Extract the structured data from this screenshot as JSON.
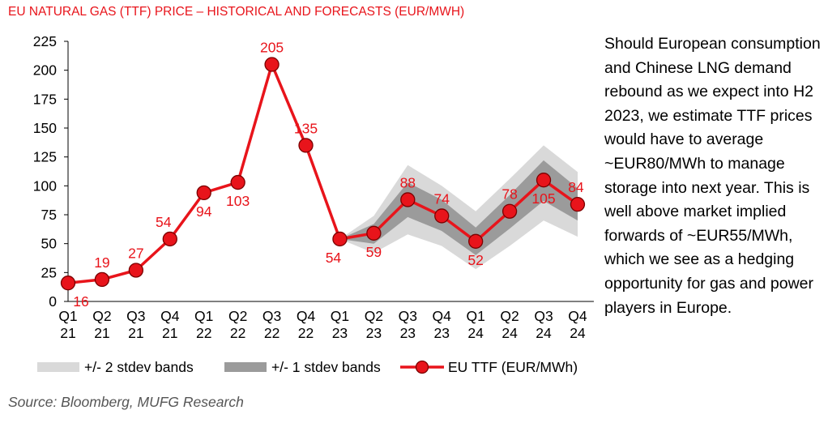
{
  "title": "EU NATURAL GAS (TTF) PRICE – HISTORICAL AND FORECASTS (EUR/MWH)",
  "side_text": "Should European consumption and Chinese LNG demand rebound as we expect into H2 2023, we estimate TTF prices would have to average ~EUR80/MWh to manage storage into next year. This is well above market implied forwards of ~EUR55/MWh, which we see as a hedging opportunity for gas and power players in Europe.",
  "source": "Source: Bloomberg, MUFG Research",
  "colors": {
    "accent": "#e8141b",
    "band2": "#d9d9d9",
    "band1": "#9b9b9b"
  },
  "chart_data": {
    "type": "line",
    "categories": [
      [
        "Q1",
        "21"
      ],
      [
        "Q2",
        "21"
      ],
      [
        "Q3",
        "21"
      ],
      [
        "Q4",
        "21"
      ],
      [
        "Q1",
        "22"
      ],
      [
        "Q2",
        "22"
      ],
      [
        "Q3",
        "22"
      ],
      [
        "Q4",
        "22"
      ],
      [
        "Q1",
        "23"
      ],
      [
        "Q2",
        "23"
      ],
      [
        "Q3",
        "23"
      ],
      [
        "Q4",
        "23"
      ],
      [
        "Q1",
        "24"
      ],
      [
        "Q2",
        "24"
      ],
      [
        "Q3",
        "24"
      ],
      [
        "Q4",
        "24"
      ]
    ],
    "ylim": [
      0,
      225
    ],
    "yticks": [
      0,
      25,
      50,
      75,
      100,
      125,
      150,
      175,
      200,
      225
    ],
    "series": [
      {
        "name": "EU TTF (EUR/MWh)",
        "values": [
          16,
          19,
          27,
          54,
          94,
          103,
          205,
          135,
          54,
          59,
          88,
          74,
          52,
          78,
          105,
          84
        ]
      }
    ],
    "band_2stdev": {
      "name": "+/- 2 stdev bands",
      "start_index": 8,
      "lower": [
        54,
        42,
        58,
        48,
        28,
        48,
        70,
        56
      ],
      "upper": [
        54,
        74,
        118,
        100,
        78,
        106,
        135,
        112
      ]
    },
    "band_1stdev": {
      "name": "+/- 1 stdev bands",
      "start_index": 8,
      "lower": [
        54,
        50,
        73,
        61,
        40,
        63,
        87,
        70
      ],
      "upper": [
        54,
        67,
        103,
        88,
        64,
        92,
        122,
        98
      ]
    },
    "data_labels": [
      "16",
      "19",
      "27",
      "54",
      "94",
      "103",
      "205",
      "135",
      "54",
      "59",
      "88",
      "74",
      "52",
      "78",
      "105",
      "84"
    ],
    "legend": {
      "placement": "bottom",
      "items": [
        "+/- 2 stdev bands",
        "+/- 1 stdev bands",
        "EU TTF (EUR/MWh)"
      ]
    },
    "grid": false
  }
}
